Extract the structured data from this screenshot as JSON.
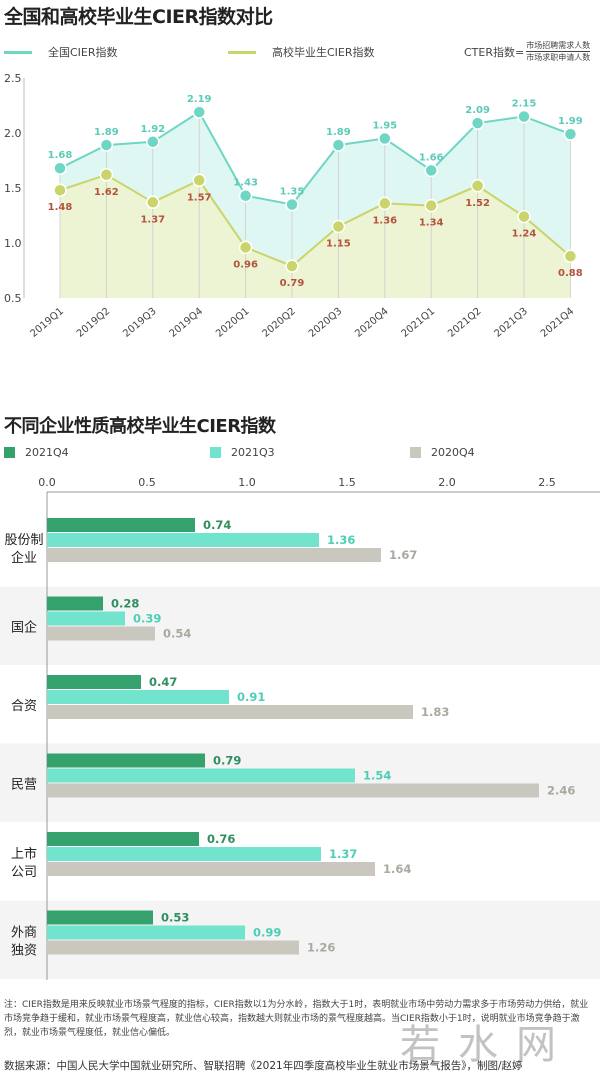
{
  "chart_data": [
    {
      "type": "line",
      "title": "全国和高校毕业生CIER指数对比",
      "categories": [
        "2019Q1",
        "2019Q2",
        "2019Q3",
        "2019Q4",
        "2020Q1",
        "2020Q2",
        "2020Q3",
        "2020Q4",
        "2021Q1",
        "2021Q2",
        "2021Q3",
        "2021Q4"
      ],
      "series": [
        {
          "name": "全国CIER指数",
          "values": [
            1.68,
            1.89,
            1.92,
            2.19,
            1.43,
            1.35,
            1.89,
            1.95,
            1.66,
            2.09,
            2.15,
            1.99
          ],
          "color": "#6fd6c4",
          "fill": "#dff7f3"
        },
        {
          "name": "高校毕业生CIER指数",
          "values": [
            1.48,
            1.62,
            1.37,
            1.57,
            0.96,
            0.79,
            1.15,
            1.36,
            1.34,
            1.52,
            1.24,
            0.88
          ],
          "color": "#c9d46a",
          "fill": "#eef3cf"
        }
      ],
      "yticks": [
        "2.5",
        "2.0",
        "1.5",
        "1.0",
        "0.5"
      ],
      "ylim": [
        0.5,
        2.5
      ],
      "formula": {
        "lhs": "CTER指数=",
        "numerator": "市场招聘需求人数",
        "denominator": "市场求职申请人数"
      }
    },
    {
      "type": "bar",
      "title": "不同企业性质高校毕业生CIER指数",
      "categories": [
        "股份制\n企业",
        "国企",
        "合资",
        "民营",
        "上市\n公司",
        "外商\n独资"
      ],
      "series": [
        {
          "name": "2021Q4",
          "values": [
            0.74,
            0.28,
            0.47,
            0.79,
            0.76,
            0.53
          ],
          "color": "#35a26e"
        },
        {
          "name": "2021Q3",
          "values": [
            1.36,
            0.39,
            0.91,
            1.54,
            1.37,
            0.99
          ],
          "color": "#72e3cc"
        },
        {
          "name": "2020Q4",
          "values": [
            1.67,
            0.54,
            1.83,
            2.46,
            1.64,
            1.26
          ],
          "color": "#c9c7be"
        }
      ],
      "xticks": [
        "0.0",
        "0.5",
        "1.0",
        "1.5",
        "2.0",
        "2.5"
      ],
      "xlim": [
        0,
        2.75
      ],
      "orientation": "horizontal"
    }
  ],
  "note": "注：CIER指数是用来反映就业市场景气程度的指标，CIER指数以1为分水岭，指数大于1时，表明就业市场中劳动力需求多于市场劳动力供给，就业市场竞争趋于缓和，就业市场景气程度高，就业信心较高，指数越大则就业市场的景气程度越高。当CIER指数小于1时，说明就业市场竞争趋于激烈，就业市场景气程度低，就业信心偏低。",
  "source": "数据来源：中国人民大学中国就业研究所、智联招聘《2021年四季度高校毕业生就业市场景气报告》，制图/赵婷",
  "watermark": "若水网"
}
